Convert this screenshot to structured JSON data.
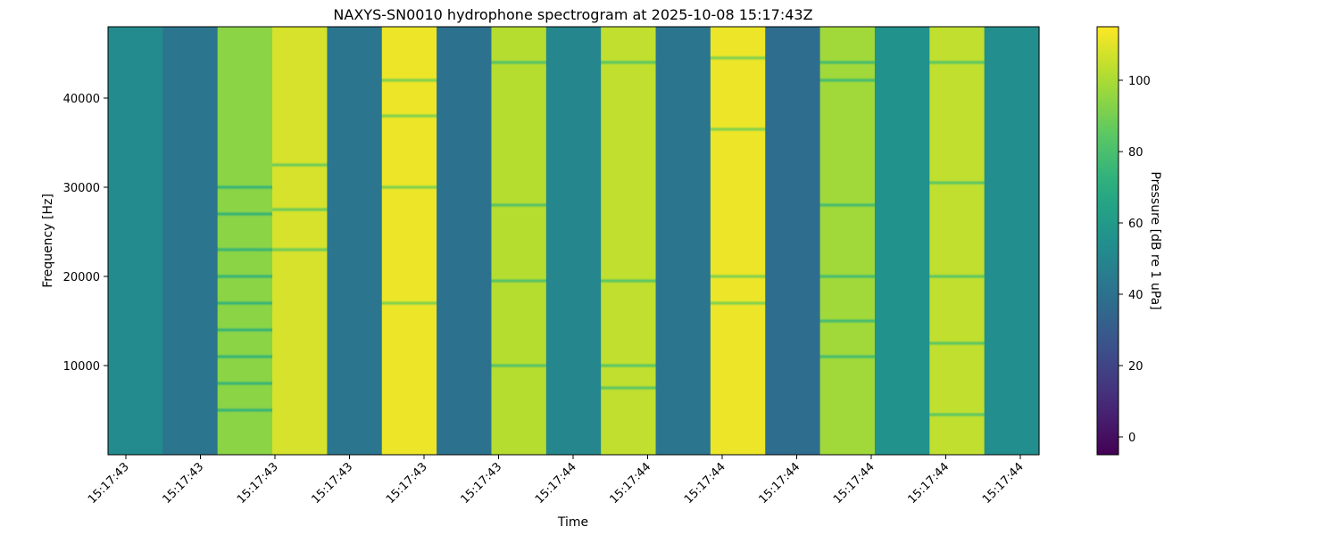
{
  "chart_data": {
    "type": "heatmap",
    "title": "NAXYS-SN0010 hydrophone spectrogram at 2025-10-08 15:17:43Z",
    "xlabel": "Time",
    "ylabel": "Frequency [Hz]",
    "colorbar_label": "Pressure [dB re 1 uPa]",
    "colormap": "viridis",
    "clim": [
      -5,
      115
    ],
    "ylim": [
      0,
      48000
    ],
    "yticks": [
      10000,
      20000,
      30000,
      40000
    ],
    "xticks": [
      "15:17:43",
      "15:17:43",
      "15:17:43",
      "15:17:43",
      "15:17:43",
      "15:17:43",
      "15:17:44",
      "15:17:44",
      "15:17:44",
      "15:17:44",
      "15:17:44",
      "15:17:44",
      "15:17:44"
    ],
    "colorbar_ticks": [
      0,
      20,
      40,
      60,
      80,
      100
    ],
    "time_segments": [
      {
        "level": 52,
        "dips": []
      },
      {
        "level": 42,
        "dips": []
      },
      {
        "level": 94,
        "dips": [
          5000,
          8000,
          11000,
          14000,
          17000,
          20000,
          23000,
          27000,
          30000
        ]
      },
      {
        "level": 108,
        "dips": [
          23000,
          27500,
          32500
        ]
      },
      {
        "level": 42,
        "dips": []
      },
      {
        "level": 112,
        "dips": [
          17000,
          30000,
          38000,
          42000
        ]
      },
      {
        "level": 40,
        "dips": []
      },
      {
        "level": 102,
        "dips": [
          10000,
          19500,
          28000,
          44000
        ]
      },
      {
        "level": 50,
        "dips": []
      },
      {
        "level": 104,
        "dips": [
          7500,
          10000,
          19500,
          44000
        ]
      },
      {
        "level": 42,
        "dips": []
      },
      {
        "level": 112,
        "dips": [
          17000,
          20000,
          36500,
          44500
        ]
      },
      {
        "level": 38,
        "dips": []
      },
      {
        "level": 98,
        "dips": [
          11000,
          15000,
          20000,
          28000,
          42000,
          44000
        ]
      },
      {
        "level": 56,
        "dips": []
      },
      {
        "level": 104,
        "dips": [
          4500,
          12500,
          20000,
          30500,
          44000
        ]
      },
      {
        "level": 54,
        "dips": []
      }
    ]
  }
}
